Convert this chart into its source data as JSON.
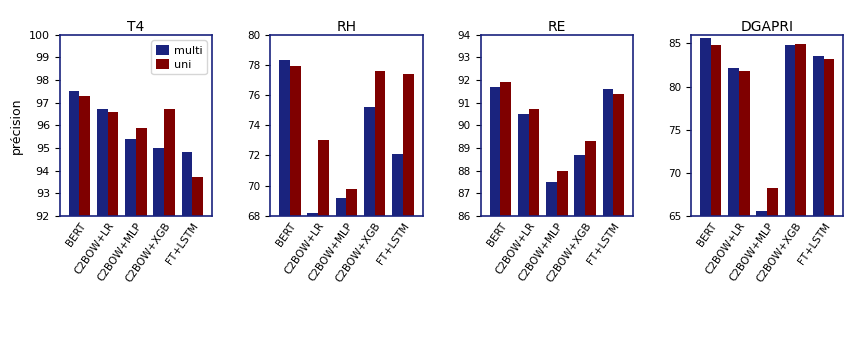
{
  "subplots": [
    {
      "title": "T4",
      "ylim": [
        92,
        100
      ],
      "yticks": [
        92,
        93,
        94,
        95,
        96,
        97,
        98,
        99,
        100
      ],
      "multi": [
        97.5,
        96.7,
        95.4,
        95.0,
        94.8
      ],
      "uni": [
        97.3,
        96.6,
        95.9,
        96.7,
        93.7
      ]
    },
    {
      "title": "RH",
      "ylim": [
        68,
        80
      ],
      "yticks": [
        68,
        70,
        72,
        74,
        76,
        78,
        80
      ],
      "multi": [
        78.3,
        68.2,
        69.2,
        75.2,
        72.1
      ],
      "uni": [
        77.9,
        73.0,
        69.8,
        77.6,
        77.4
      ]
    },
    {
      "title": "RE",
      "ylim": [
        86,
        94
      ],
      "yticks": [
        86,
        87,
        88,
        89,
        90,
        91,
        92,
        93,
        94
      ],
      "multi": [
        91.7,
        90.5,
        87.5,
        88.7,
        91.6
      ],
      "uni": [
        91.9,
        90.7,
        88.0,
        89.3,
        91.4
      ]
    },
    {
      "title": "DGAPRI",
      "ylim": [
        65,
        86
      ],
      "yticks": [
        65,
        70,
        75,
        80,
        85
      ],
      "multi": [
        85.6,
        82.1,
        65.5,
        84.8,
        83.5
      ],
      "uni": [
        84.8,
        81.8,
        68.2,
        84.9,
        83.2
      ]
    }
  ],
  "categories": [
    "BERT",
    "C2BOW+LR",
    "C2BOW+MLP",
    "C2BOW+XGB",
    "FT+LSTM"
  ],
  "color_multi": "#1a237e",
  "color_uni": "#7f0000",
  "ylabel": "précision",
  "legend_labels": [
    "multi",
    "uni"
  ],
  "bar_width": 0.38,
  "figsize": [
    8.52,
    3.48
  ],
  "dpi": 100
}
